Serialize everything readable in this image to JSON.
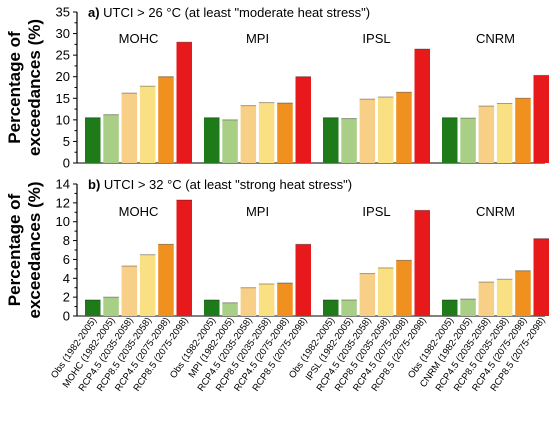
{
  "chart_data": [
    {
      "type": "bar",
      "panel_letter": "a)",
      "title": "UTCI > 26 °C (at least \"moderate heat stress\")",
      "ylabel_line1": "Percentage of",
      "ylabel_line2": "exceedances (%)",
      "ylim": [
        0,
        35
      ],
      "yticks": [
        0,
        5,
        10,
        15,
        20,
        25,
        30,
        35
      ],
      "bar_colors": [
        "#1f7a1a",
        "#a8cf85",
        "#f7cf87",
        "#f9e183",
        "#f0901e",
        "#e8191b"
      ],
      "groups": [
        {
          "model": "MOHC",
          "values": [
            10.5,
            11.2,
            16.2,
            17.8,
            20.0,
            28.0
          ]
        },
        {
          "model": "MPI",
          "values": [
            10.5,
            10.0,
            13.3,
            14.0,
            13.9,
            20.0
          ]
        },
        {
          "model": "IPSL",
          "values": [
            10.5,
            10.3,
            14.8,
            15.3,
            16.4,
            26.4
          ]
        },
        {
          "model": "CNRM",
          "values": [
            10.5,
            10.4,
            13.2,
            13.8,
            15.0,
            20.3
          ]
        }
      ]
    },
    {
      "type": "bar",
      "panel_letter": "b)",
      "title": "UTCI > 32 °C (at least \"strong heat stress\")",
      "ylabel_line1": "Percentage of",
      "ylabel_line2": "exceedances (%)",
      "ylim": [
        0,
        14
      ],
      "yticks": [
        0,
        2,
        4,
        6,
        8,
        10,
        12,
        14
      ],
      "bar_colors": [
        "#1f7a1a",
        "#a8cf85",
        "#f7cf87",
        "#f9e183",
        "#f0901e",
        "#e8191b"
      ],
      "groups": [
        {
          "model": "MOHC",
          "values": [
            1.7,
            2.0,
            5.3,
            6.5,
            7.6,
            12.3
          ],
          "categories": [
            "Obs (1982-2005)",
            "MOHC (1982-2005)",
            "RCP4.5 (2035-2058)",
            "RCP8.5 (2035-2058)",
            "RCP4.5 (2075-2098)",
            "RCP8.5 (2075-2098)"
          ]
        },
        {
          "model": "MPI",
          "values": [
            1.7,
            1.4,
            3.0,
            3.4,
            3.5,
            7.6
          ],
          "categories": [
            "Obs (1982-2005)",
            "MPI (1982-2005)",
            "RCP4.5 (2035-2058)",
            "RCP8.5 (2035-2058)",
            "RCP4.5 (2075-2098)",
            "RCP8.5 (2075-2098)"
          ]
        },
        {
          "model": "IPSL",
          "values": [
            1.7,
            1.7,
            4.5,
            5.1,
            5.9,
            11.2
          ],
          "categories": [
            "Obs (1982-2005)",
            "IPSL (1982-2005)",
            "RCP4.5 (2035-2058)",
            "RCP8.5 (2035-2058)",
            "RCP4.5 (2075-2098)",
            "RCP8.5 (2075-2098)"
          ]
        },
        {
          "model": "CNRM",
          "values": [
            1.7,
            1.8,
            3.6,
            3.9,
            4.8,
            8.2
          ],
          "categories": [
            "Obs (1982-2005)",
            "CNRM (1982-2005)",
            "RCP4.5 (2035-2058)",
            "RCP8.5 (2035-2058)",
            "RCP4.5 (2075-2098)",
            "RCP8.5 (2075-2098)"
          ]
        }
      ]
    }
  ]
}
